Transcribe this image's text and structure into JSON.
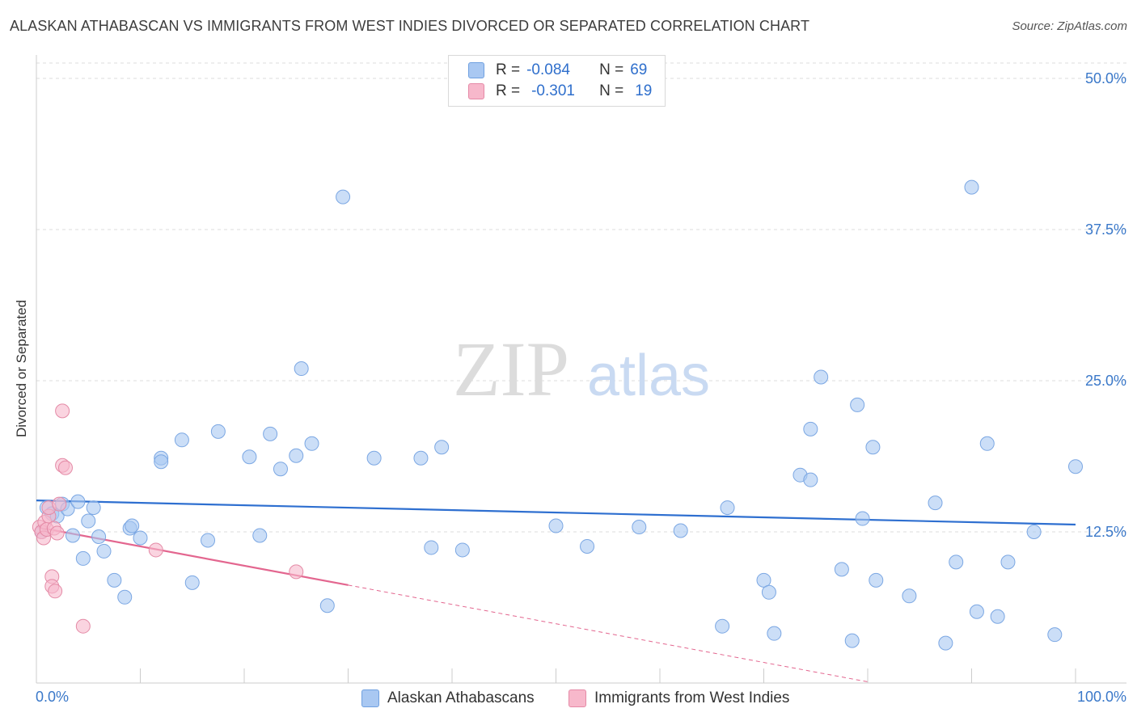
{
  "header": {
    "title": "ALASKAN ATHABASCAN VS IMMIGRANTS FROM WEST INDIES DIVORCED OR SEPARATED CORRELATION CHART",
    "source": "Source: ZipAtlas.com"
  },
  "watermark": {
    "zip": "ZIP",
    "atlas": "atlas"
  },
  "legend": {
    "r_label": "R =",
    "n_label": "N =",
    "series": [
      {
        "r": "-0.084",
        "n": "69",
        "color": "#a9c8f2",
        "border": "#6fa0e0"
      },
      {
        "r": "-0.301",
        "n": "19",
        "color": "#f7b8cb",
        "border": "#e589a6"
      }
    ]
  },
  "bottom_legend": [
    "Alaskan Athabascans",
    "Immigrants from West Indies"
  ],
  "chart_data": {
    "type": "scatter",
    "title": "ALASKAN ATHABASCAN VS IMMIGRANTS FROM WEST INDIES DIVORCED OR SEPARATED CORRELATION CHART",
    "xlabel": "",
    "ylabel": "Divorced or Separated",
    "xlim": [
      0,
      100
    ],
    "ylim": [
      0,
      50
    ],
    "x_tick_labels": [
      "0.0%",
      "100.0%"
    ],
    "y_ticks": [
      12.5,
      25.0,
      37.5,
      50.0
    ],
    "y_tick_labels": [
      "12.5%",
      "25.0%",
      "37.5%",
      "50.0%"
    ],
    "grid": true,
    "series": [
      {
        "name": "Alaskan Athabascans",
        "color": "#a9c8f2",
        "stroke": "#7ba7e3",
        "trend_color": "#2e6fd0",
        "trend": {
          "x0": 0,
          "y0": 15.1,
          "x1": 100,
          "y1": 13.1
        },
        "points": [
          [
            0.5,
            12.5
          ],
          [
            1.0,
            14.5
          ],
          [
            1.5,
            14.0
          ],
          [
            2.0,
            13.8
          ],
          [
            2.5,
            14.8
          ],
          [
            3.0,
            14.4
          ],
          [
            3.5,
            12.2
          ],
          [
            4.0,
            15.0
          ],
          [
            4.5,
            10.3
          ],
          [
            5.0,
            13.4
          ],
          [
            5.5,
            14.5
          ],
          [
            6.0,
            12.1
          ],
          [
            6.5,
            10.9
          ],
          [
            7.5,
            8.5
          ],
          [
            8.5,
            7.1
          ],
          [
            9.0,
            12.8
          ],
          [
            9.2,
            13.0
          ],
          [
            10.0,
            12.0
          ],
          [
            12.0,
            18.6
          ],
          [
            12.0,
            18.3
          ],
          [
            14.0,
            20.1
          ],
          [
            15.0,
            8.3
          ],
          [
            16.5,
            11.8
          ],
          [
            17.5,
            20.8
          ],
          [
            20.5,
            18.7
          ],
          [
            21.5,
            12.2
          ],
          [
            22.5,
            20.6
          ],
          [
            23.5,
            17.7
          ],
          [
            25.0,
            18.8
          ],
          [
            25.5,
            26.0
          ],
          [
            26.5,
            19.8
          ],
          [
            28.0,
            6.4
          ],
          [
            29.5,
            40.2
          ],
          [
            32.5,
            18.6
          ],
          [
            37.0,
            18.6
          ],
          [
            38.0,
            11.2
          ],
          [
            39.0,
            19.5
          ],
          [
            41.0,
            11.0
          ],
          [
            50.0,
            13.0
          ],
          [
            53.0,
            11.3
          ],
          [
            58.0,
            12.9
          ],
          [
            62.0,
            12.6
          ],
          [
            66.0,
            4.7
          ],
          [
            66.5,
            14.5
          ],
          [
            70.0,
            8.5
          ],
          [
            70.5,
            7.5
          ],
          [
            71.0,
            4.1
          ],
          [
            73.5,
            17.2
          ],
          [
            74.5,
            16.8
          ],
          [
            74.5,
            21.0
          ],
          [
            75.5,
            25.3
          ],
          [
            77.5,
            9.4
          ],
          [
            78.5,
            3.5
          ],
          [
            79.0,
            23.0
          ],
          [
            79.5,
            13.6
          ],
          [
            80.5,
            19.5
          ],
          [
            80.8,
            8.5
          ],
          [
            84.0,
            7.2
          ],
          [
            86.5,
            14.9
          ],
          [
            87.5,
            3.3
          ],
          [
            88.5,
            10.0
          ],
          [
            90.0,
            41.0
          ],
          [
            90.5,
            5.9
          ],
          [
            91.5,
            19.8
          ],
          [
            92.5,
            5.5
          ],
          [
            93.5,
            10.0
          ],
          [
            96.0,
            12.5
          ],
          [
            98.0,
            4.0
          ],
          [
            100.0,
            17.9
          ]
        ]
      },
      {
        "name": "Immigrants from West Indies",
        "color": "#f7b8cb",
        "stroke": "#e48aa6",
        "trend_color": "#e3668f",
        "trend": {
          "x0": 0,
          "y0": 12.9,
          "x1": 30,
          "y1": 8.1
        },
        "trend_dashed": {
          "x0": 30,
          "y0": 8.1,
          "x1": 80,
          "y1": 0.1
        },
        "points": [
          [
            0.3,
            12.9
          ],
          [
            0.5,
            12.5
          ],
          [
            0.7,
            12.0
          ],
          [
            0.8,
            13.3
          ],
          [
            1.0,
            12.7
          ],
          [
            1.2,
            13.8
          ],
          [
            1.2,
            14.5
          ],
          [
            1.5,
            8.8
          ],
          [
            1.5,
            8.0
          ],
          [
            1.7,
            12.8
          ],
          [
            1.8,
            7.6
          ],
          [
            2.0,
            12.4
          ],
          [
            2.2,
            14.8
          ],
          [
            2.5,
            22.5
          ],
          [
            2.5,
            18.0
          ],
          [
            2.8,
            17.8
          ],
          [
            4.5,
            4.7
          ],
          [
            11.5,
            11.0
          ],
          [
            25.0,
            9.2
          ]
        ]
      }
    ]
  }
}
